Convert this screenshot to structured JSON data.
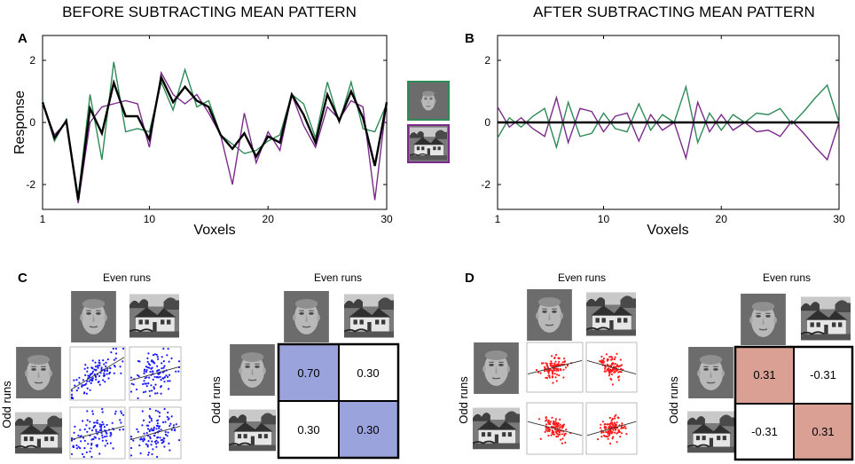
{
  "headers": {
    "left": "BEFORE SUBTRACTING MEAN PATTERN",
    "right": "AFTER SUBTRACTING MEAN PATTERN"
  },
  "panel_letters": {
    "a": "A",
    "b": "B",
    "c": "C",
    "d": "D"
  },
  "labels": {
    "even_runs": "Even runs",
    "odd_runs": "Odd runs"
  },
  "colors": {
    "face": "#2e8b57",
    "house": "#7b2a8c",
    "mean": "#000000",
    "blue_cell": "#9aa3dc",
    "red_cell": "#d9a093",
    "blue_dots": "#1a1aff",
    "red_dots": "#ff1a1a"
  },
  "stimuli": {
    "face": "face-photo",
    "house": "house-photo"
  },
  "chart_data": [
    {
      "id": "A",
      "type": "line",
      "title": "BEFORE SUBTRACTING MEAN PATTERN",
      "xlabel": "Voxels",
      "ylabel": "Response",
      "xlim": [
        1,
        30
      ],
      "ylim": [
        -2.8,
        2.8
      ],
      "xticks": [
        "1",
        "10",
        "20",
        "30"
      ],
      "yticks": [
        "2",
        "0",
        "-2"
      ],
      "x": [
        1,
        2,
        3,
        4,
        5,
        6,
        7,
        8,
        9,
        10,
        11,
        12,
        13,
        14,
        15,
        16,
        17,
        18,
        19,
        20,
        21,
        22,
        23,
        24,
        25,
        26,
        27,
        28,
        29,
        30
      ],
      "series": [
        {
          "name": "face",
          "values": [
            0.7,
            -0.6,
            0.1,
            -2.4,
            0.9,
            -1.2,
            1.95,
            -0.3,
            -0.2,
            -0.3,
            1.3,
            0.4,
            1.7,
            0.5,
            0.7,
            -0.4,
            -0.7,
            -1.0,
            -0.9,
            -0.6,
            -0.4,
            0.9,
            0.6,
            -0.5,
            1.3,
            0.0,
            1.3,
            -0.2,
            -0.3,
            0.6
          ]
        },
        {
          "name": "house",
          "values": [
            0.6,
            -0.4,
            0.0,
            -2.6,
            0.0,
            0.5,
            0.6,
            0.7,
            0.6,
            -0.8,
            1.6,
            0.9,
            0.6,
            0.9,
            0.3,
            -0.4,
            -2.0,
            0.3,
            -1.3,
            -0.3,
            -0.9,
            0.9,
            -0.1,
            -0.8,
            0.5,
            0.1,
            0.7,
            0.5,
            -2.5,
            0.7
          ]
        },
        {
          "name": "mean",
          "values": [
            0.65,
            -0.5,
            0.05,
            -2.5,
            0.45,
            -0.35,
            1.28,
            0.2,
            0.2,
            -0.55,
            1.45,
            0.65,
            1.15,
            0.7,
            0.5,
            -0.4,
            -0.85,
            -0.35,
            -1.1,
            -0.45,
            -0.65,
            0.9,
            0.25,
            -0.65,
            0.9,
            0.05,
            1.0,
            0.15,
            -1.4,
            0.65
          ]
        }
      ],
      "legend": [
        "face",
        "house"
      ]
    },
    {
      "id": "B",
      "type": "line",
      "title": "AFTER SUBTRACTING MEAN PATTERN",
      "xlabel": "Voxels",
      "ylabel": "",
      "xlim": [
        1,
        30
      ],
      "ylim": [
        -2.8,
        2.8
      ],
      "xticks": [
        "1",
        "10",
        "20",
        "30"
      ],
      "yticks": [
        "2",
        "0",
        "-2"
      ],
      "x": [
        1,
        2,
        3,
        4,
        5,
        6,
        7,
        8,
        9,
        10,
        11,
        12,
        13,
        14,
        15,
        16,
        17,
        18,
        19,
        20,
        21,
        22,
        23,
        24,
        25,
        26,
        27,
        28,
        29,
        30
      ],
      "series": [
        {
          "name": "face",
          "values": [
            -0.5,
            0.15,
            -0.15,
            0.2,
            0.45,
            -0.8,
            0.65,
            -0.45,
            -0.35,
            0.3,
            -0.2,
            -0.3,
            0.6,
            -0.25,
            0.25,
            0.0,
            1.15,
            -0.65,
            0.3,
            -0.25,
            0.25,
            0.0,
            0.3,
            0.25,
            0.45,
            -0.05,
            0.35,
            0.8,
            1.2,
            0.0
          ]
        },
        {
          "name": "house",
          "values": [
            0.5,
            -0.15,
            0.15,
            -0.2,
            -0.45,
            0.8,
            -0.65,
            0.45,
            0.35,
            -0.3,
            0.2,
            0.3,
            -0.6,
            0.25,
            -0.25,
            0.0,
            -1.15,
            0.65,
            -0.3,
            0.25,
            -0.25,
            0.0,
            -0.3,
            -0.25,
            -0.45,
            0.05,
            -0.35,
            -0.8,
            -1.2,
            0.0
          ]
        },
        {
          "name": "mean",
          "values": [
            0,
            0,
            0,
            0,
            0,
            0,
            0,
            0,
            0,
            0,
            0,
            0,
            0,
            0,
            0,
            0,
            0,
            0,
            0,
            0,
            0,
            0,
            0,
            0,
            0,
            0,
            0,
            0,
            0,
            0
          ]
        }
      ]
    },
    {
      "id": "C-scatter",
      "type": "scatter",
      "xlabel": "Even runs",
      "ylabel": "Odd runs",
      "cells": [
        {
          "row": "face",
          "col": "face",
          "slope": 0.7
        },
        {
          "row": "face",
          "col": "house",
          "slope": 0.3
        },
        {
          "row": "house",
          "col": "face",
          "slope": 0.3
        },
        {
          "row": "house",
          "col": "house",
          "slope": 0.3
        }
      ]
    },
    {
      "id": "C-matrix",
      "type": "table",
      "xlabel": "Even runs",
      "ylabel": "Odd runs",
      "cells": [
        [
          "0.70",
          "0.30"
        ],
        [
          "0.30",
          "0.30"
        ]
      ]
    },
    {
      "id": "D-scatter",
      "type": "scatter",
      "xlabel": "Even runs",
      "ylabel": "Odd runs",
      "cells": [
        {
          "row": "face",
          "col": "face",
          "slope": 0.31
        },
        {
          "row": "face",
          "col": "house",
          "slope": -0.31
        },
        {
          "row": "house",
          "col": "face",
          "slope": -0.31
        },
        {
          "row": "house",
          "col": "house",
          "slope": 0.31
        }
      ]
    },
    {
      "id": "D-matrix",
      "type": "table",
      "xlabel": "Even runs",
      "ylabel": "Odd runs",
      "cells": [
        [
          "0.31",
          "-0.31"
        ],
        [
          "-0.31",
          "0.31"
        ]
      ]
    }
  ]
}
